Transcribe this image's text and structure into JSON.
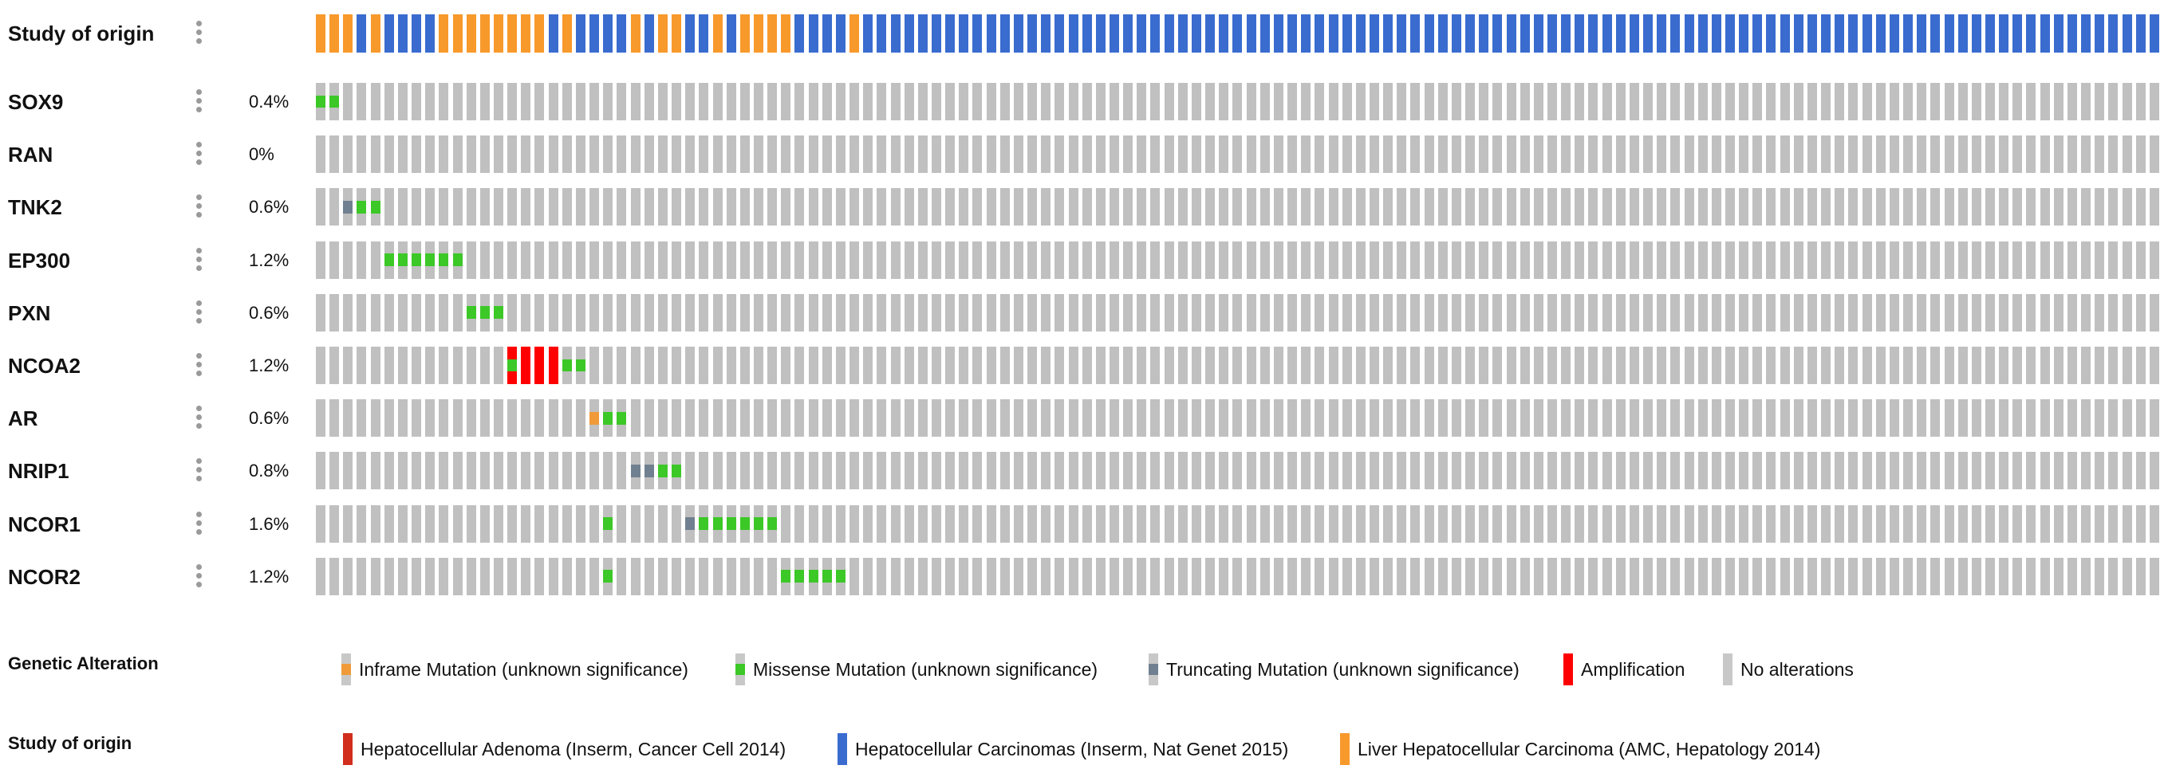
{
  "chart_data": {
    "type": "heatmap",
    "title": "",
    "n_samples": 135,
    "study_row": {
      "label": "Study of origin",
      "runs": [
        {
          "study": "amc",
          "count": 3
        },
        {
          "study": "nat",
          "count": 1
        },
        {
          "study": "amc",
          "count": 1
        },
        {
          "study": "nat",
          "count": 4
        },
        {
          "study": "amc",
          "count": 8
        },
        {
          "study": "nat",
          "count": 1
        },
        {
          "study": "amc",
          "count": 1
        },
        {
          "study": "nat",
          "count": 4
        },
        {
          "study": "amc",
          "count": 1
        },
        {
          "study": "nat",
          "count": 1
        },
        {
          "study": "amc",
          "count": 2
        },
        {
          "study": "nat",
          "count": 2
        },
        {
          "study": "amc",
          "count": 1
        },
        {
          "study": "nat",
          "count": 1
        },
        {
          "study": "amc",
          "count": 4
        },
        {
          "study": "nat",
          "count": 4
        },
        {
          "study": "amc",
          "count": 1
        },
        {
          "study": "nat",
          "count": 95
        }
      ]
    },
    "genes": [
      {
        "name": "SOX9",
        "pct": "0.4%",
        "alterations": [
          {
            "i": 0,
            "type": "missense"
          },
          {
            "i": 1,
            "type": "missense"
          }
        ]
      },
      {
        "name": "RAN",
        "pct": "0%",
        "alterations": []
      },
      {
        "name": "TNK2",
        "pct": "0.6%",
        "alterations": [
          {
            "i": 2,
            "type": "truncating"
          },
          {
            "i": 3,
            "type": "missense"
          },
          {
            "i": 4,
            "type": "missense"
          }
        ]
      },
      {
        "name": "EP300",
        "pct": "1.2%",
        "alterations": [
          {
            "i": 5,
            "type": "missense"
          },
          {
            "i": 6,
            "type": "missense"
          },
          {
            "i": 7,
            "type": "missense"
          },
          {
            "i": 8,
            "type": "missense"
          },
          {
            "i": 9,
            "type": "missense"
          },
          {
            "i": 10,
            "type": "missense"
          }
        ]
      },
      {
        "name": "PXN",
        "pct": "0.6%",
        "alterations": [
          {
            "i": 11,
            "type": "missense"
          },
          {
            "i": 12,
            "type": "missense"
          },
          {
            "i": 13,
            "type": "missense"
          }
        ]
      },
      {
        "name": "NCOA2",
        "pct": "1.2%",
        "alterations": [
          {
            "i": 14,
            "type": "amp_missense"
          },
          {
            "i": 15,
            "type": "amplification"
          },
          {
            "i": 16,
            "type": "amplification"
          },
          {
            "i": 17,
            "type": "amplification"
          },
          {
            "i": 18,
            "type": "missense"
          },
          {
            "i": 19,
            "type": "missense"
          }
        ]
      },
      {
        "name": "AR",
        "pct": "0.6%",
        "alterations": [
          {
            "i": 20,
            "type": "inframe"
          },
          {
            "i": 21,
            "type": "missense"
          },
          {
            "i": 22,
            "type": "missense"
          }
        ]
      },
      {
        "name": "NRIP1",
        "pct": "0.8%",
        "alterations": [
          {
            "i": 23,
            "type": "truncating"
          },
          {
            "i": 24,
            "type": "truncating"
          },
          {
            "i": 25,
            "type": "missense"
          },
          {
            "i": 26,
            "type": "missense"
          }
        ]
      },
      {
        "name": "NCOR1",
        "pct": "1.6%",
        "alterations": [
          {
            "i": 21,
            "type": "missense"
          },
          {
            "i": 27,
            "type": "truncating"
          },
          {
            "i": 28,
            "type": "missense"
          },
          {
            "i": 29,
            "type": "missense"
          },
          {
            "i": 30,
            "type": "missense"
          },
          {
            "i": 31,
            "type": "missense"
          },
          {
            "i": 32,
            "type": "missense"
          },
          {
            "i": 33,
            "type": "missense"
          }
        ]
      },
      {
        "name": "NCOR2",
        "pct": "1.2%",
        "alterations": [
          {
            "i": 21,
            "type": "missense"
          },
          {
            "i": 34,
            "type": "missense"
          },
          {
            "i": 35,
            "type": "missense"
          },
          {
            "i": 36,
            "type": "missense"
          },
          {
            "i": 37,
            "type": "missense"
          },
          {
            "i": 38,
            "type": "missense"
          }
        ]
      }
    ]
  },
  "colors": {
    "no_alteration": "#c0c0c0",
    "missense": "#3cc827",
    "truncating": "#708090",
    "inframe": "#f09a3a",
    "amplification": "#ff0000",
    "study_amc": "#f8992b",
    "study_nat": "#3a6ccf",
    "study_adenoma": "#d12e1e"
  },
  "legend": {
    "genetic": {
      "title": "Genetic Alteration",
      "items": [
        {
          "key": "inframe",
          "label": "Inframe Mutation (unknown significance)"
        },
        {
          "key": "missense",
          "label": "Missense Mutation (unknown significance)"
        },
        {
          "key": "truncating",
          "label": "Truncating Mutation (unknown significance)"
        },
        {
          "key": "amplification",
          "label": "Amplification"
        },
        {
          "key": "none",
          "label": "No alterations"
        }
      ]
    },
    "study": {
      "title": "Study of origin",
      "items": [
        {
          "key": "adenoma",
          "label": "Hepatocellular Adenoma (Inserm, Cancer Cell 2014)"
        },
        {
          "key": "nat",
          "label": "Hepatocellular Carcinomas (Inserm, Nat Genet 2015)"
        },
        {
          "key": "amc",
          "label": "Liver Hepatocellular Carcinoma (AMC, Hepatology 2014)"
        }
      ]
    }
  }
}
